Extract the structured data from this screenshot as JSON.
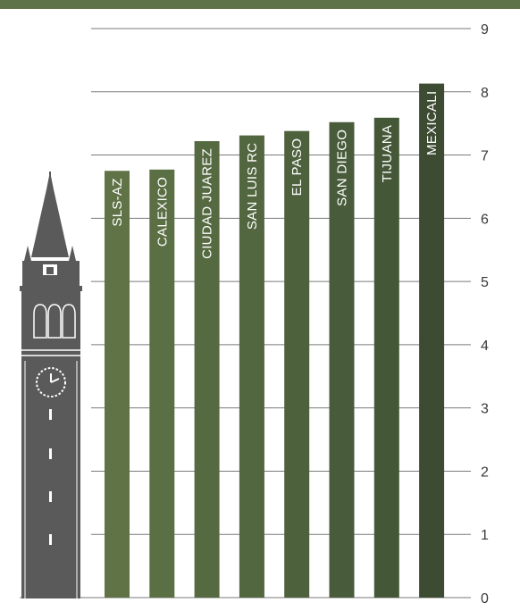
{
  "chart_data": {
    "type": "bar",
    "orientation": "vertical",
    "title": "",
    "xlabel": "",
    "ylabel": "",
    "categories": [
      "SLS-AZ",
      "CALEXICO",
      "CIUDAD JUAREZ",
      "SAN LUIS RC",
      "EL PASO",
      "SAN DIEGO",
      "TIJUANA",
      "MEXICALI"
    ],
    "values": [
      6.75,
      6.77,
      7.22,
      7.31,
      7.38,
      7.52,
      7.59,
      8.13
    ],
    "ylim": [
      0,
      9
    ],
    "yticks": [
      "0",
      "1",
      "2",
      "3",
      "4",
      "5",
      "6",
      "7",
      "8",
      "9"
    ],
    "y_axis_side": "right",
    "grid": true,
    "label_placement": "inside-bar-top-rotated",
    "bar_colors": [
      "#5f7346",
      "#5b6f44",
      "#566a42",
      "#526640",
      "#4d613d",
      "#485c3b",
      "#445737",
      "#3c4b32"
    ]
  },
  "colors": {
    "top_band": "#5e7348",
    "grid": "#7a7a7a",
    "bar_label": "#ffffff",
    "tick_label": "#3a3a3a",
    "tower": "#5a5a5a"
  },
  "illustration": {
    "icon": "clock-tower-icon"
  }
}
